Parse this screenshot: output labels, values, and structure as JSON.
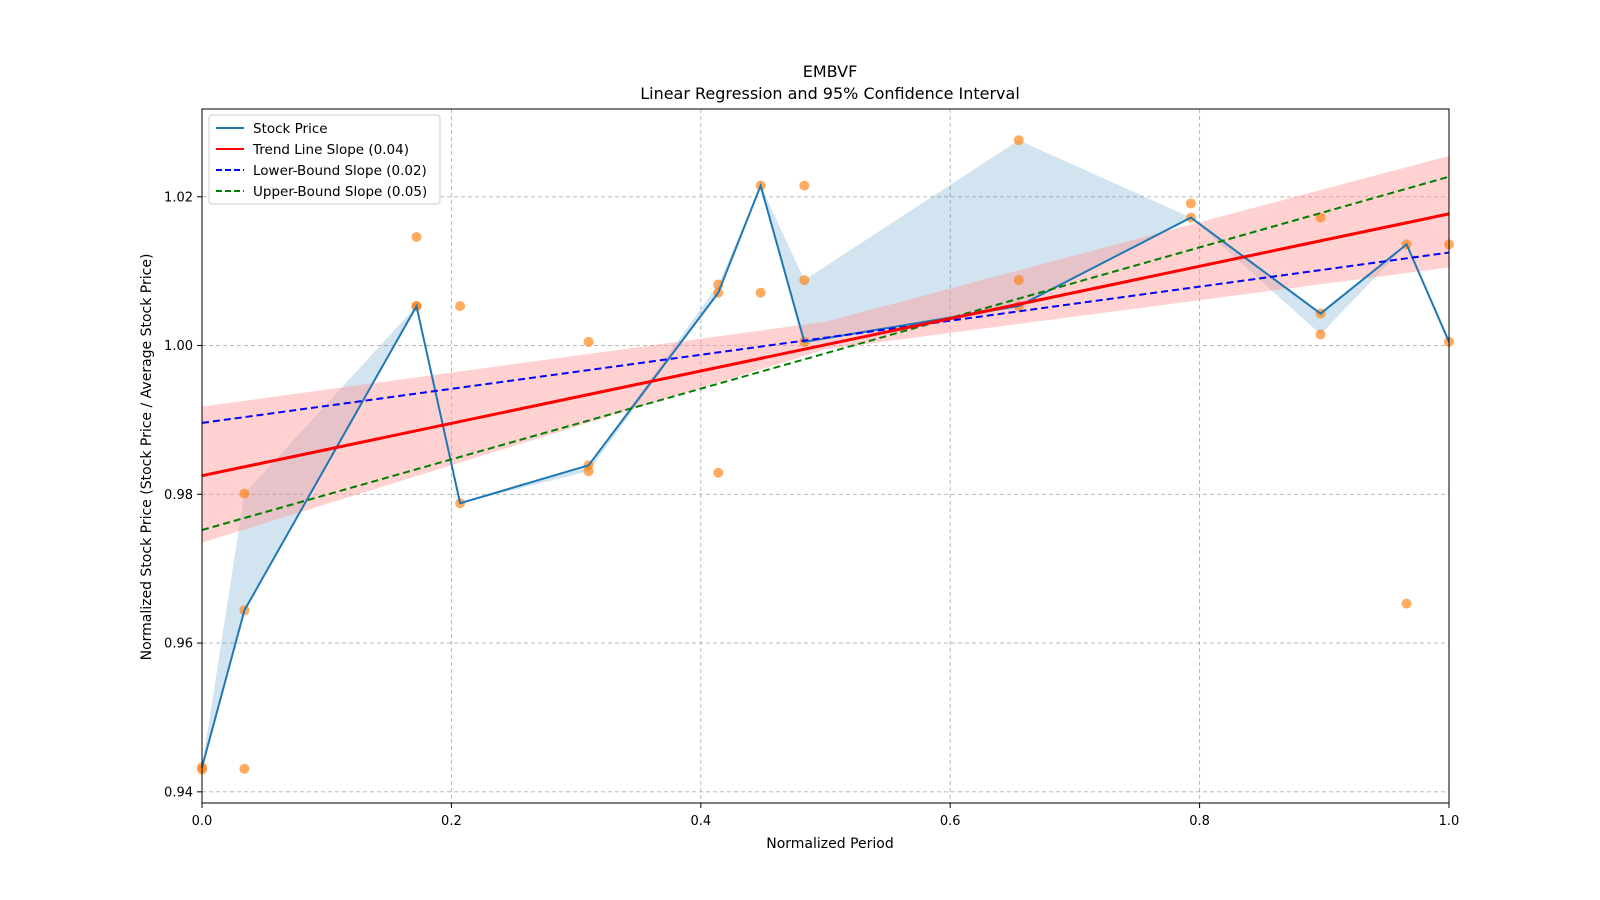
{
  "chart_data": {
    "type": "line",
    "title": "EMBVF",
    "subtitle": "Linear Regression and 95% Confidence Interval",
    "xlabel": "Normalized Period",
    "ylabel": "Normalized Stock Price (Stock Price / Average Stock Price)",
    "xlim": [
      0.0,
      1.0
    ],
    "ylim": [
      0.9385,
      1.0318
    ],
    "xticks": [
      0.0,
      0.2,
      0.4,
      0.6,
      0.8,
      1.0
    ],
    "xtick_labels": [
      "0.0",
      "0.2",
      "0.4",
      "0.6",
      "0.8",
      "1.0"
    ],
    "yticks": [
      0.94,
      0.96,
      0.98,
      1.0,
      1.02
    ],
    "ytick_labels": [
      "0.94",
      "0.96",
      "0.98",
      "1.00",
      "1.02"
    ],
    "grid": true,
    "legend_position": "top-left",
    "colors": {
      "stock": "#1f77b4",
      "stock_band": "#1f77b4",
      "scatter": "#ff7f0e",
      "trend": "#ff0000",
      "trend_band": "#ff9999",
      "lower": "#0000ff",
      "upper": "#008000"
    },
    "legend": [
      {
        "label": "Stock Price",
        "key": "stock",
        "dashed": false
      },
      {
        "label": "Trend Line Slope (0.04)",
        "key": "trend",
        "dashed": false
      },
      {
        "label": "Lower-Bound Slope (0.02)",
        "key": "lower",
        "dashed": true
      },
      {
        "label": "Upper-Bound Slope (0.05)",
        "key": "upper",
        "dashed": true
      }
    ],
    "stock_price": {
      "x": [
        0.0,
        0.034,
        0.172,
        0.207,
        0.31,
        0.414,
        0.448,
        0.483,
        0.655,
        0.793,
        0.897,
        0.966,
        1.0
      ],
      "y": [
        0.9433,
        0.9644,
        1.0053,
        0.9788,
        0.9839,
        1.0071,
        1.0215,
        1.0005,
        1.0053,
        1.0172,
        1.0043,
        1.0136,
        1.0005
      ],
      "band_low": [
        0.9433,
        0.9644,
        1.0053,
        0.9788,
        0.9831,
        1.0071,
        1.0215,
        1.0005,
        1.0053,
        1.0172,
        1.0015,
        1.0136,
        1.0005
      ],
      "band_high": [
        0.9433,
        0.9801,
        1.0053,
        0.9788,
        0.9839,
        1.0082,
        1.0215,
        1.0088,
        1.0276,
        1.0172,
        1.0043,
        1.0136,
        1.0005
      ]
    },
    "scatter": {
      "x": [
        0.0,
        0.0,
        0.034,
        0.034,
        0.034,
        0.172,
        0.172,
        0.172,
        0.207,
        0.207,
        0.31,
        0.31,
        0.31,
        0.414,
        0.414,
        0.414,
        0.448,
        0.448,
        0.483,
        0.483,
        0.483,
        0.655,
        0.655,
        0.655,
        0.793,
        0.793,
        0.897,
        0.897,
        0.897,
        0.966,
        0.966,
        1.0,
        1.0
      ],
      "y": [
        0.943,
        0.9433,
        0.9431,
        0.9644,
        0.9801,
        1.0146,
        1.0053,
        1.0053,
        1.0053,
        0.9788,
        1.0005,
        0.9839,
        0.9831,
        1.0082,
        1.0071,
        0.9829,
        1.0215,
        1.0071,
        1.0215,
        1.0088,
        1.0005,
        1.0276,
        1.0088,
        1.0053,
        1.0191,
        1.0172,
        1.0172,
        1.0043,
        1.0015,
        1.0136,
        0.9653,
        1.0136,
        1.0005
      ]
    },
    "trend_line": {
      "x": [
        0.0,
        1.0
      ],
      "y": [
        0.9825,
        1.0177
      ]
    },
    "trend_band": {
      "x": [
        0.0,
        0.5,
        1.0
      ],
      "low": [
        0.9735,
        0.9995,
        1.0105
      ],
      "high": [
        0.9918,
        1.0032,
        1.0255
      ]
    },
    "lower_bound_line": {
      "x": [
        0.0,
        1.0
      ],
      "y": [
        0.9896,
        1.0125
      ]
    },
    "upper_bound_line": {
      "x": [
        0.0,
        1.0
      ],
      "y": [
        0.9752,
        1.0227
      ]
    }
  }
}
